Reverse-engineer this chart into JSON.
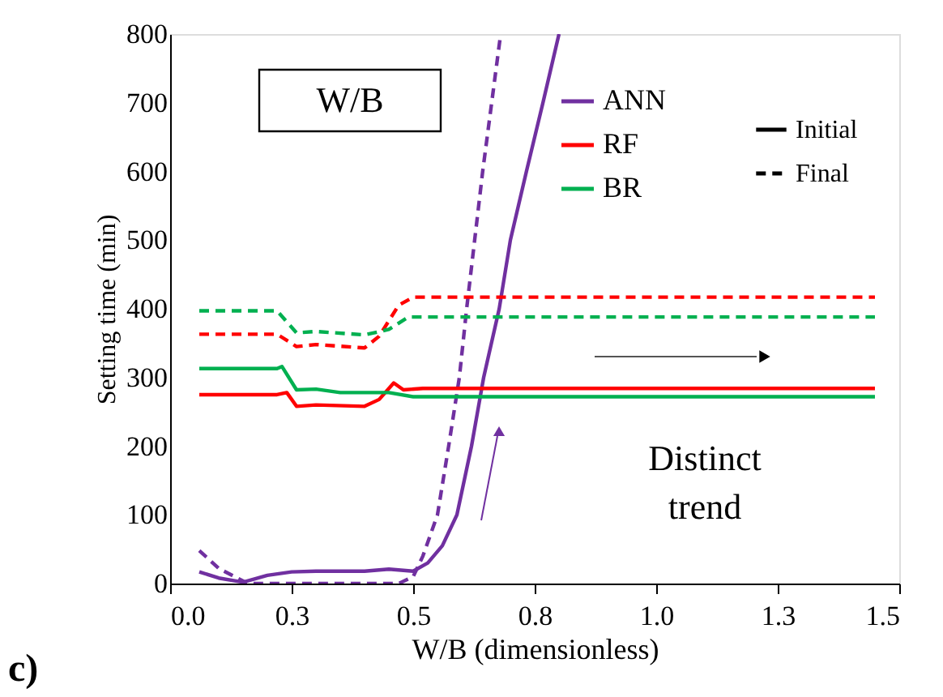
{
  "chart_data": {
    "type": "line",
    "xlabel": "W/B (dimensionless)",
    "ylabel": "Setting time (min)",
    "xlim": [
      0,
      1.5
    ],
    "xticks": [
      {
        "value": 0,
        "label": "0.0"
      },
      {
        "value": 0.25,
        "label": "0.3"
      },
      0.5,
      {
        "value": 0.75,
        "label": "0.8"
      },
      {
        "value": 1,
        "label": "1.0"
      },
      {
        "value": 1.25,
        "label": "1.3"
      },
      1.5
    ],
    "ylim": [
      0,
      800
    ],
    "yticks": [
      0,
      100,
      200,
      300,
      400,
      500,
      600,
      700,
      800
    ],
    "grid": false,
    "legend": "top right",
    "marker": "none",
    "series": [
      {
        "name": "ANN",
        "color": "#7030a0",
        "line_style": "solid",
        "x": [
          0.06,
          0.1,
          0.15,
          0.2,
          0.25,
          0.3,
          0.4,
          0.45,
          0.5,
          0.53,
          0.56,
          0.59,
          0.62,
          0.645,
          0.677,
          0.7,
          0.733,
          0.767,
          0.8
        ],
        "values": [
          17,
          8,
          2,
          12,
          17,
          18,
          18,
          21,
          18,
          30,
          55,
          100,
          200,
          300,
          400,
          500,
          600,
          700,
          800
        ]
      },
      {
        "color": "#7030a0",
        "line_style": "dashed",
        "x": [
          0.06,
          0.1,
          0.16,
          0.2,
          0.3,
          0.4,
          0.47,
          0.5,
          0.52,
          0.55,
          0.573,
          0.595,
          0.61,
          0.643,
          0.68
        ],
        "values": [
          48,
          22,
          0,
          0,
          0,
          0,
          0,
          10,
          40,
          100,
          200,
          300,
          400,
          600,
          800
        ]
      },
      {
        "name": "RF",
        "color": "#ff0000",
        "line_style": "solid",
        "x": [
          0.06,
          0.22,
          0.24,
          0.26,
          0.3,
          0.4,
          0.43,
          0.46,
          0.48,
          0.52,
          1.45
        ],
        "values": [
          275,
          275,
          278,
          258,
          260,
          258,
          268,
          292,
          282,
          284,
          284
        ]
      },
      {
        "color": "#ff0000",
        "line_style": "dashed",
        "x": [
          0.06,
          0.22,
          0.26,
          0.3,
          0.4,
          0.43,
          0.47,
          0.5,
          1.45
        ],
        "values": [
          363,
          363,
          345,
          348,
          343,
          360,
          405,
          417,
          417
        ]
      },
      {
        "name": "BR",
        "color": "#00b050",
        "line_style": "solid",
        "x": [
          0.06,
          0.22,
          0.23,
          0.26,
          0.3,
          0.35,
          0.45,
          0.5,
          1.45
        ],
        "values": [
          313,
          313,
          316,
          282,
          283,
          278,
          278,
          272,
          272
        ]
      },
      {
        "color": "#00b050",
        "line_style": "dashed",
        "x": [
          0.06,
          0.22,
          0.26,
          0.3,
          0.4,
          0.45,
          0.49,
          1.45
        ],
        "values": [
          397,
          397,
          365,
          367,
          362,
          370,
          388,
          388
        ]
      }
    ],
    "annotations": [
      "W/B",
      "Distinct trend",
      "c)",
      "Initial",
      "Final"
    ]
  }
}
